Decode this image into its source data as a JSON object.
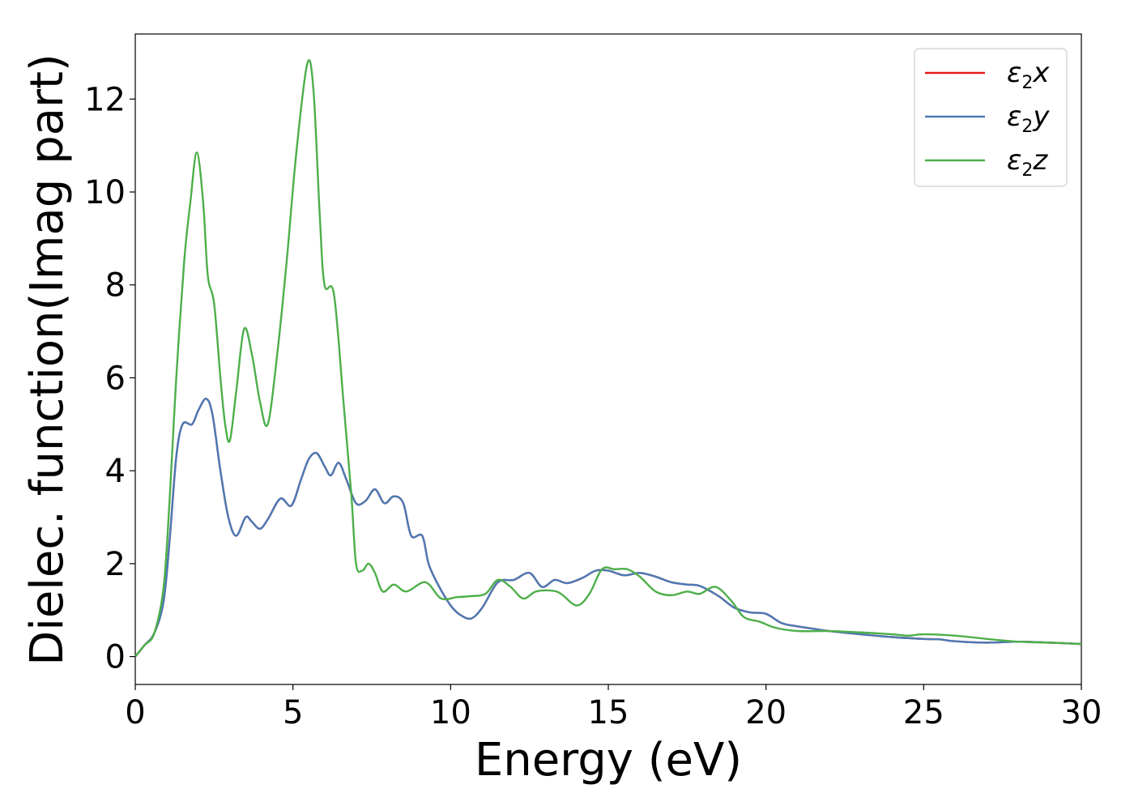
{
  "chart_data": {
    "type": "line",
    "xlabel": "Energy (eV)",
    "ylabel": "Dielec. function(Imag part)",
    "xlim": [
      0,
      30
    ],
    "ylim": [
      -0.6,
      13.4
    ],
    "x_ticks": [
      0,
      5,
      10,
      15,
      20,
      25,
      30
    ],
    "y_ticks": [
      0,
      2,
      4,
      6,
      8,
      10,
      12
    ],
    "grid": false,
    "legend_position": "top-right",
    "series": [
      {
        "name": "ε₂x",
        "legend_base": "ε",
        "legend_sub": "2",
        "legend_suffix": "x",
        "color": "#e41a1c",
        "points": [
          [
            0,
            0
          ],
          [
            0.3,
            0.25
          ],
          [
            0.6,
            0.5
          ],
          [
            0.9,
            1.2
          ],
          [
            1.1,
            2.6
          ],
          [
            1.3,
            4.3
          ],
          [
            1.5,
            5.0
          ],
          [
            1.8,
            5.0
          ],
          [
            2.0,
            5.3
          ],
          [
            2.25,
            5.55
          ],
          [
            2.45,
            5.2
          ],
          [
            2.7,
            4.0
          ],
          [
            2.95,
            3.0
          ],
          [
            3.2,
            2.6
          ],
          [
            3.5,
            3.0
          ],
          [
            3.7,
            2.9
          ],
          [
            3.95,
            2.75
          ],
          [
            4.2,
            2.95
          ],
          [
            4.6,
            3.4
          ],
          [
            4.95,
            3.25
          ],
          [
            5.25,
            3.8
          ],
          [
            5.5,
            4.25
          ],
          [
            5.75,
            4.38
          ],
          [
            6.0,
            4.1
          ],
          [
            6.2,
            3.9
          ],
          [
            6.45,
            4.17
          ],
          [
            6.7,
            3.8
          ],
          [
            7.0,
            3.3
          ],
          [
            7.3,
            3.35
          ],
          [
            7.6,
            3.6
          ],
          [
            7.9,
            3.3
          ],
          [
            8.2,
            3.45
          ],
          [
            8.5,
            3.3
          ],
          [
            8.75,
            2.6
          ],
          [
            9.1,
            2.6
          ],
          [
            9.3,
            2.0
          ],
          [
            9.6,
            1.55
          ],
          [
            10.0,
            1.1
          ],
          [
            10.3,
            0.9
          ],
          [
            10.65,
            0.82
          ],
          [
            11.0,
            1.05
          ],
          [
            11.5,
            1.6
          ],
          [
            12.0,
            1.65
          ],
          [
            12.5,
            1.8
          ],
          [
            12.9,
            1.5
          ],
          [
            13.3,
            1.65
          ],
          [
            13.7,
            1.58
          ],
          [
            14.2,
            1.7
          ],
          [
            14.6,
            1.85
          ],
          [
            15.0,
            1.85
          ],
          [
            15.5,
            1.75
          ],
          [
            16.0,
            1.8
          ],
          [
            16.5,
            1.72
          ],
          [
            17.0,
            1.6
          ],
          [
            17.5,
            1.55
          ],
          [
            17.9,
            1.52
          ],
          [
            18.5,
            1.3
          ],
          [
            19.0,
            1.05
          ],
          [
            19.5,
            0.95
          ],
          [
            20.0,
            0.92
          ],
          [
            20.5,
            0.72
          ],
          [
            21.0,
            0.65
          ],
          [
            21.5,
            0.6
          ],
          [
            22.0,
            0.55
          ],
          [
            23.0,
            0.48
          ],
          [
            24.0,
            0.42
          ],
          [
            25.0,
            0.38
          ],
          [
            25.5,
            0.37
          ],
          [
            26.0,
            0.33
          ],
          [
            27.0,
            0.3
          ],
          [
            28.0,
            0.32
          ],
          [
            29.0,
            0.3
          ],
          [
            30.0,
            0.27
          ]
        ]
      },
      {
        "name": "ε₂y",
        "legend_base": "ε",
        "legend_sub": "2",
        "legend_suffix": "y",
        "color": "#4a7ab5",
        "points": [
          [
            0,
            0
          ],
          [
            0.3,
            0.25
          ],
          [
            0.6,
            0.5
          ],
          [
            0.9,
            1.2
          ],
          [
            1.1,
            2.6
          ],
          [
            1.3,
            4.3
          ],
          [
            1.5,
            5.0
          ],
          [
            1.8,
            5.0
          ],
          [
            2.0,
            5.3
          ],
          [
            2.25,
            5.55
          ],
          [
            2.45,
            5.2
          ],
          [
            2.7,
            4.0
          ],
          [
            2.95,
            3.0
          ],
          [
            3.2,
            2.6
          ],
          [
            3.5,
            3.0
          ],
          [
            3.7,
            2.9
          ],
          [
            3.95,
            2.75
          ],
          [
            4.2,
            2.95
          ],
          [
            4.6,
            3.4
          ],
          [
            4.95,
            3.25
          ],
          [
            5.25,
            3.8
          ],
          [
            5.5,
            4.25
          ],
          [
            5.75,
            4.38
          ],
          [
            6.0,
            4.1
          ],
          [
            6.2,
            3.9
          ],
          [
            6.45,
            4.17
          ],
          [
            6.7,
            3.8
          ],
          [
            7.0,
            3.3
          ],
          [
            7.3,
            3.35
          ],
          [
            7.6,
            3.6
          ],
          [
            7.9,
            3.3
          ],
          [
            8.2,
            3.45
          ],
          [
            8.5,
            3.3
          ],
          [
            8.75,
            2.6
          ],
          [
            9.1,
            2.6
          ],
          [
            9.3,
            2.0
          ],
          [
            9.6,
            1.55
          ],
          [
            10.0,
            1.1
          ],
          [
            10.3,
            0.9
          ],
          [
            10.65,
            0.82
          ],
          [
            11.0,
            1.05
          ],
          [
            11.5,
            1.6
          ],
          [
            12.0,
            1.65
          ],
          [
            12.5,
            1.8
          ],
          [
            12.9,
            1.5
          ],
          [
            13.3,
            1.65
          ],
          [
            13.7,
            1.58
          ],
          [
            14.2,
            1.7
          ],
          [
            14.6,
            1.85
          ],
          [
            15.0,
            1.85
          ],
          [
            15.5,
            1.75
          ],
          [
            16.0,
            1.8
          ],
          [
            16.5,
            1.72
          ],
          [
            17.0,
            1.6
          ],
          [
            17.5,
            1.55
          ],
          [
            17.9,
            1.52
          ],
          [
            18.5,
            1.3
          ],
          [
            19.0,
            1.05
          ],
          [
            19.5,
            0.95
          ],
          [
            20.0,
            0.92
          ],
          [
            20.5,
            0.72
          ],
          [
            21.0,
            0.65
          ],
          [
            21.5,
            0.6
          ],
          [
            22.0,
            0.55
          ],
          [
            23.0,
            0.48
          ],
          [
            24.0,
            0.42
          ],
          [
            25.0,
            0.38
          ],
          [
            25.5,
            0.37
          ],
          [
            26.0,
            0.33
          ],
          [
            27.0,
            0.3
          ],
          [
            28.0,
            0.32
          ],
          [
            29.0,
            0.3
          ],
          [
            30.0,
            0.27
          ]
        ]
      },
      {
        "name": "ε₂z",
        "legend_base": "ε",
        "legend_sub": "2",
        "legend_suffix": "z",
        "color": "#4daf4a",
        "points": [
          [
            0,
            0
          ],
          [
            0.3,
            0.25
          ],
          [
            0.6,
            0.5
          ],
          [
            0.9,
            1.5
          ],
          [
            1.1,
            3.5
          ],
          [
            1.3,
            6.0
          ],
          [
            1.55,
            8.5
          ],
          [
            1.75,
            9.8
          ],
          [
            1.95,
            10.85
          ],
          [
            2.15,
            9.8
          ],
          [
            2.3,
            8.2
          ],
          [
            2.5,
            7.6
          ],
          [
            2.7,
            6.0
          ],
          [
            2.85,
            5.0
          ],
          [
            3.0,
            4.65
          ],
          [
            3.2,
            5.7
          ],
          [
            3.45,
            7.05
          ],
          [
            3.7,
            6.5
          ],
          [
            3.95,
            5.5
          ],
          [
            4.2,
            5.0
          ],
          [
            4.5,
            6.5
          ],
          [
            4.8,
            8.5
          ],
          [
            5.1,
            10.8
          ],
          [
            5.45,
            12.75
          ],
          [
            5.65,
            12.2
          ],
          [
            5.85,
            9.5
          ],
          [
            6.0,
            8.0
          ],
          [
            6.3,
            7.8
          ],
          [
            6.6,
            5.5
          ],
          [
            6.85,
            3.5
          ],
          [
            7.0,
            2.0
          ],
          [
            7.2,
            1.85
          ],
          [
            7.4,
            2.0
          ],
          [
            7.6,
            1.8
          ],
          [
            7.85,
            1.4
          ],
          [
            8.2,
            1.55
          ],
          [
            8.6,
            1.4
          ],
          [
            9.2,
            1.6
          ],
          [
            9.7,
            1.25
          ],
          [
            10.2,
            1.28
          ],
          [
            10.6,
            1.3
          ],
          [
            11.1,
            1.35
          ],
          [
            11.5,
            1.65
          ],
          [
            11.9,
            1.5
          ],
          [
            12.3,
            1.25
          ],
          [
            12.7,
            1.4
          ],
          [
            13.2,
            1.42
          ],
          [
            13.5,
            1.35
          ],
          [
            14.0,
            1.1
          ],
          [
            14.4,
            1.35
          ],
          [
            14.8,
            1.88
          ],
          [
            15.2,
            1.88
          ],
          [
            15.6,
            1.88
          ],
          [
            16.0,
            1.72
          ],
          [
            16.5,
            1.4
          ],
          [
            17.0,
            1.32
          ],
          [
            17.5,
            1.4
          ],
          [
            17.9,
            1.35
          ],
          [
            18.4,
            1.5
          ],
          [
            18.9,
            1.2
          ],
          [
            19.3,
            0.85
          ],
          [
            19.8,
            0.75
          ],
          [
            20.3,
            0.62
          ],
          [
            21.0,
            0.55
          ],
          [
            22.0,
            0.55
          ],
          [
            23.0,
            0.52
          ],
          [
            24.0,
            0.48
          ],
          [
            24.5,
            0.45
          ],
          [
            25.0,
            0.48
          ],
          [
            26.0,
            0.45
          ],
          [
            27.0,
            0.38
          ],
          [
            28.0,
            0.32
          ],
          [
            29.0,
            0.3
          ],
          [
            30.0,
            0.27
          ]
        ]
      }
    ]
  }
}
